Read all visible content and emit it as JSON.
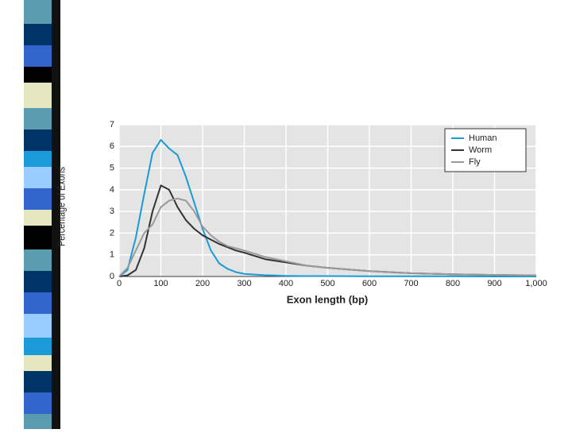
{
  "chart_data": {
    "type": "line",
    "xlabel": "Exon length (bp)",
    "ylabel": "Percentage of Exons",
    "x": [
      0,
      20,
      40,
      60,
      80,
      100,
      120,
      140,
      160,
      180,
      200,
      220,
      240,
      260,
      280,
      300,
      350,
      400,
      450,
      500,
      600,
      700,
      800,
      900,
      1000
    ],
    "series": [
      {
        "name": "Human",
        "color": "#1a9ad6",
        "values": [
          0,
          0.3,
          1.8,
          3.8,
          5.7,
          6.3,
          5.9,
          5.6,
          4.6,
          3.4,
          2.2,
          1.2,
          0.6,
          0.35,
          0.2,
          0.12,
          0.06,
          0.03,
          0.02,
          0.02,
          0.01,
          0.01,
          0.01,
          0,
          0
        ]
      },
      {
        "name": "Worm",
        "color": "#333333",
        "values": [
          0,
          0.05,
          0.3,
          1.3,
          3.0,
          4.2,
          4.0,
          3.2,
          2.6,
          2.2,
          1.9,
          1.7,
          1.5,
          1.35,
          1.2,
          1.1,
          0.8,
          0.65,
          0.5,
          0.4,
          0.25,
          0.15,
          0.1,
          0.07,
          0.05
        ]
      },
      {
        "name": "Fly",
        "color": "#9a9a9a",
        "values": [
          0,
          0.4,
          1.2,
          2.0,
          2.4,
          3.2,
          3.5,
          3.6,
          3.5,
          3.0,
          2.3,
          1.9,
          1.6,
          1.4,
          1.3,
          1.2,
          0.9,
          0.7,
          0.5,
          0.4,
          0.25,
          0.15,
          0.1,
          0.07,
          0.05
        ]
      }
    ],
    "xlim": [
      0,
      1000
    ],
    "xticks": [
      0,
      100,
      200,
      300,
      400,
      500,
      600,
      700,
      800,
      900,
      {
        "value": 1000,
        "label": "1,000"
      }
    ],
    "ylim": [
      0,
      7
    ],
    "yticks": [
      0,
      1,
      2,
      3,
      4,
      5,
      6,
      7
    ],
    "grid": true,
    "legend": "upper right"
  }
}
